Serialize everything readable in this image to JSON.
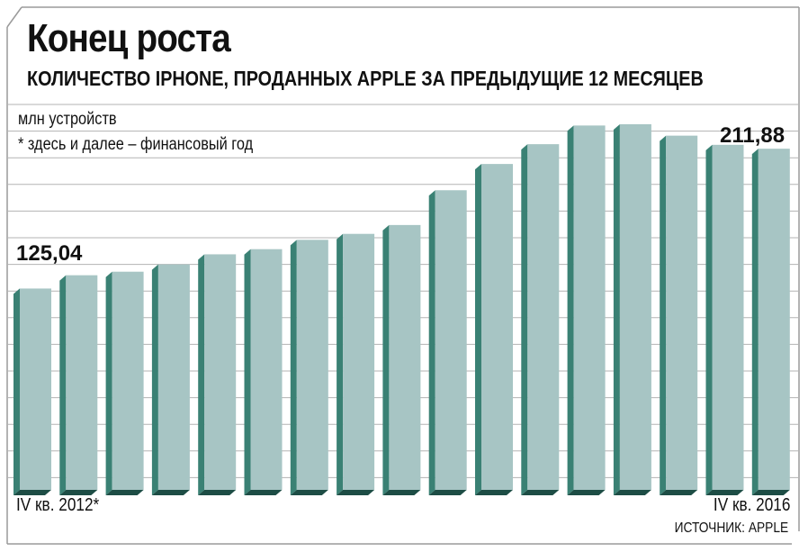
{
  "header": {
    "title": "Конец роста",
    "subtitle": "КОЛИЧЕСТВО IPHONE, ПРОДАННЫХ APPLE ЗА ПРЕДЫДУЩИЕ 12 МЕСЯЦЕВ"
  },
  "notes": {
    "unit": "млн устройств",
    "fiscal": "* здесь и далее – финансовый год"
  },
  "source": "ИСТОЧНИК: APPLE",
  "colors": {
    "bar_front": "#a7c5c4",
    "bar_side": "#3a8174",
    "bar_bottom": "#1d4d45",
    "grid": "#b3b3b3"
  },
  "chart_data": {
    "type": "bar",
    "categories": [
      "IV кв. 2012*",
      "",
      "",
      "",
      "",
      "",
      "",
      "",
      "",
      "",
      "",
      "",
      "",
      "",
      "",
      "",
      "IV кв. 2016"
    ],
    "values": [
      125.04,
      133.3,
      135.5,
      140.0,
      146.3,
      149.5,
      155.3,
      159.0,
      164.5,
      186.1,
      202.4,
      214.7,
      226.3,
      227.1,
      220.0,
      214.3,
      211.88
    ],
    "value_labels": {
      "first": "125,04",
      "last": "211,88"
    },
    "xlabel_first": "IV кв. 2012*",
    "xlabel_last": "IV кв. 2016",
    "ylabel": "млн устройств",
    "ylim": [
      0,
      240
    ],
    "grid": true
  }
}
